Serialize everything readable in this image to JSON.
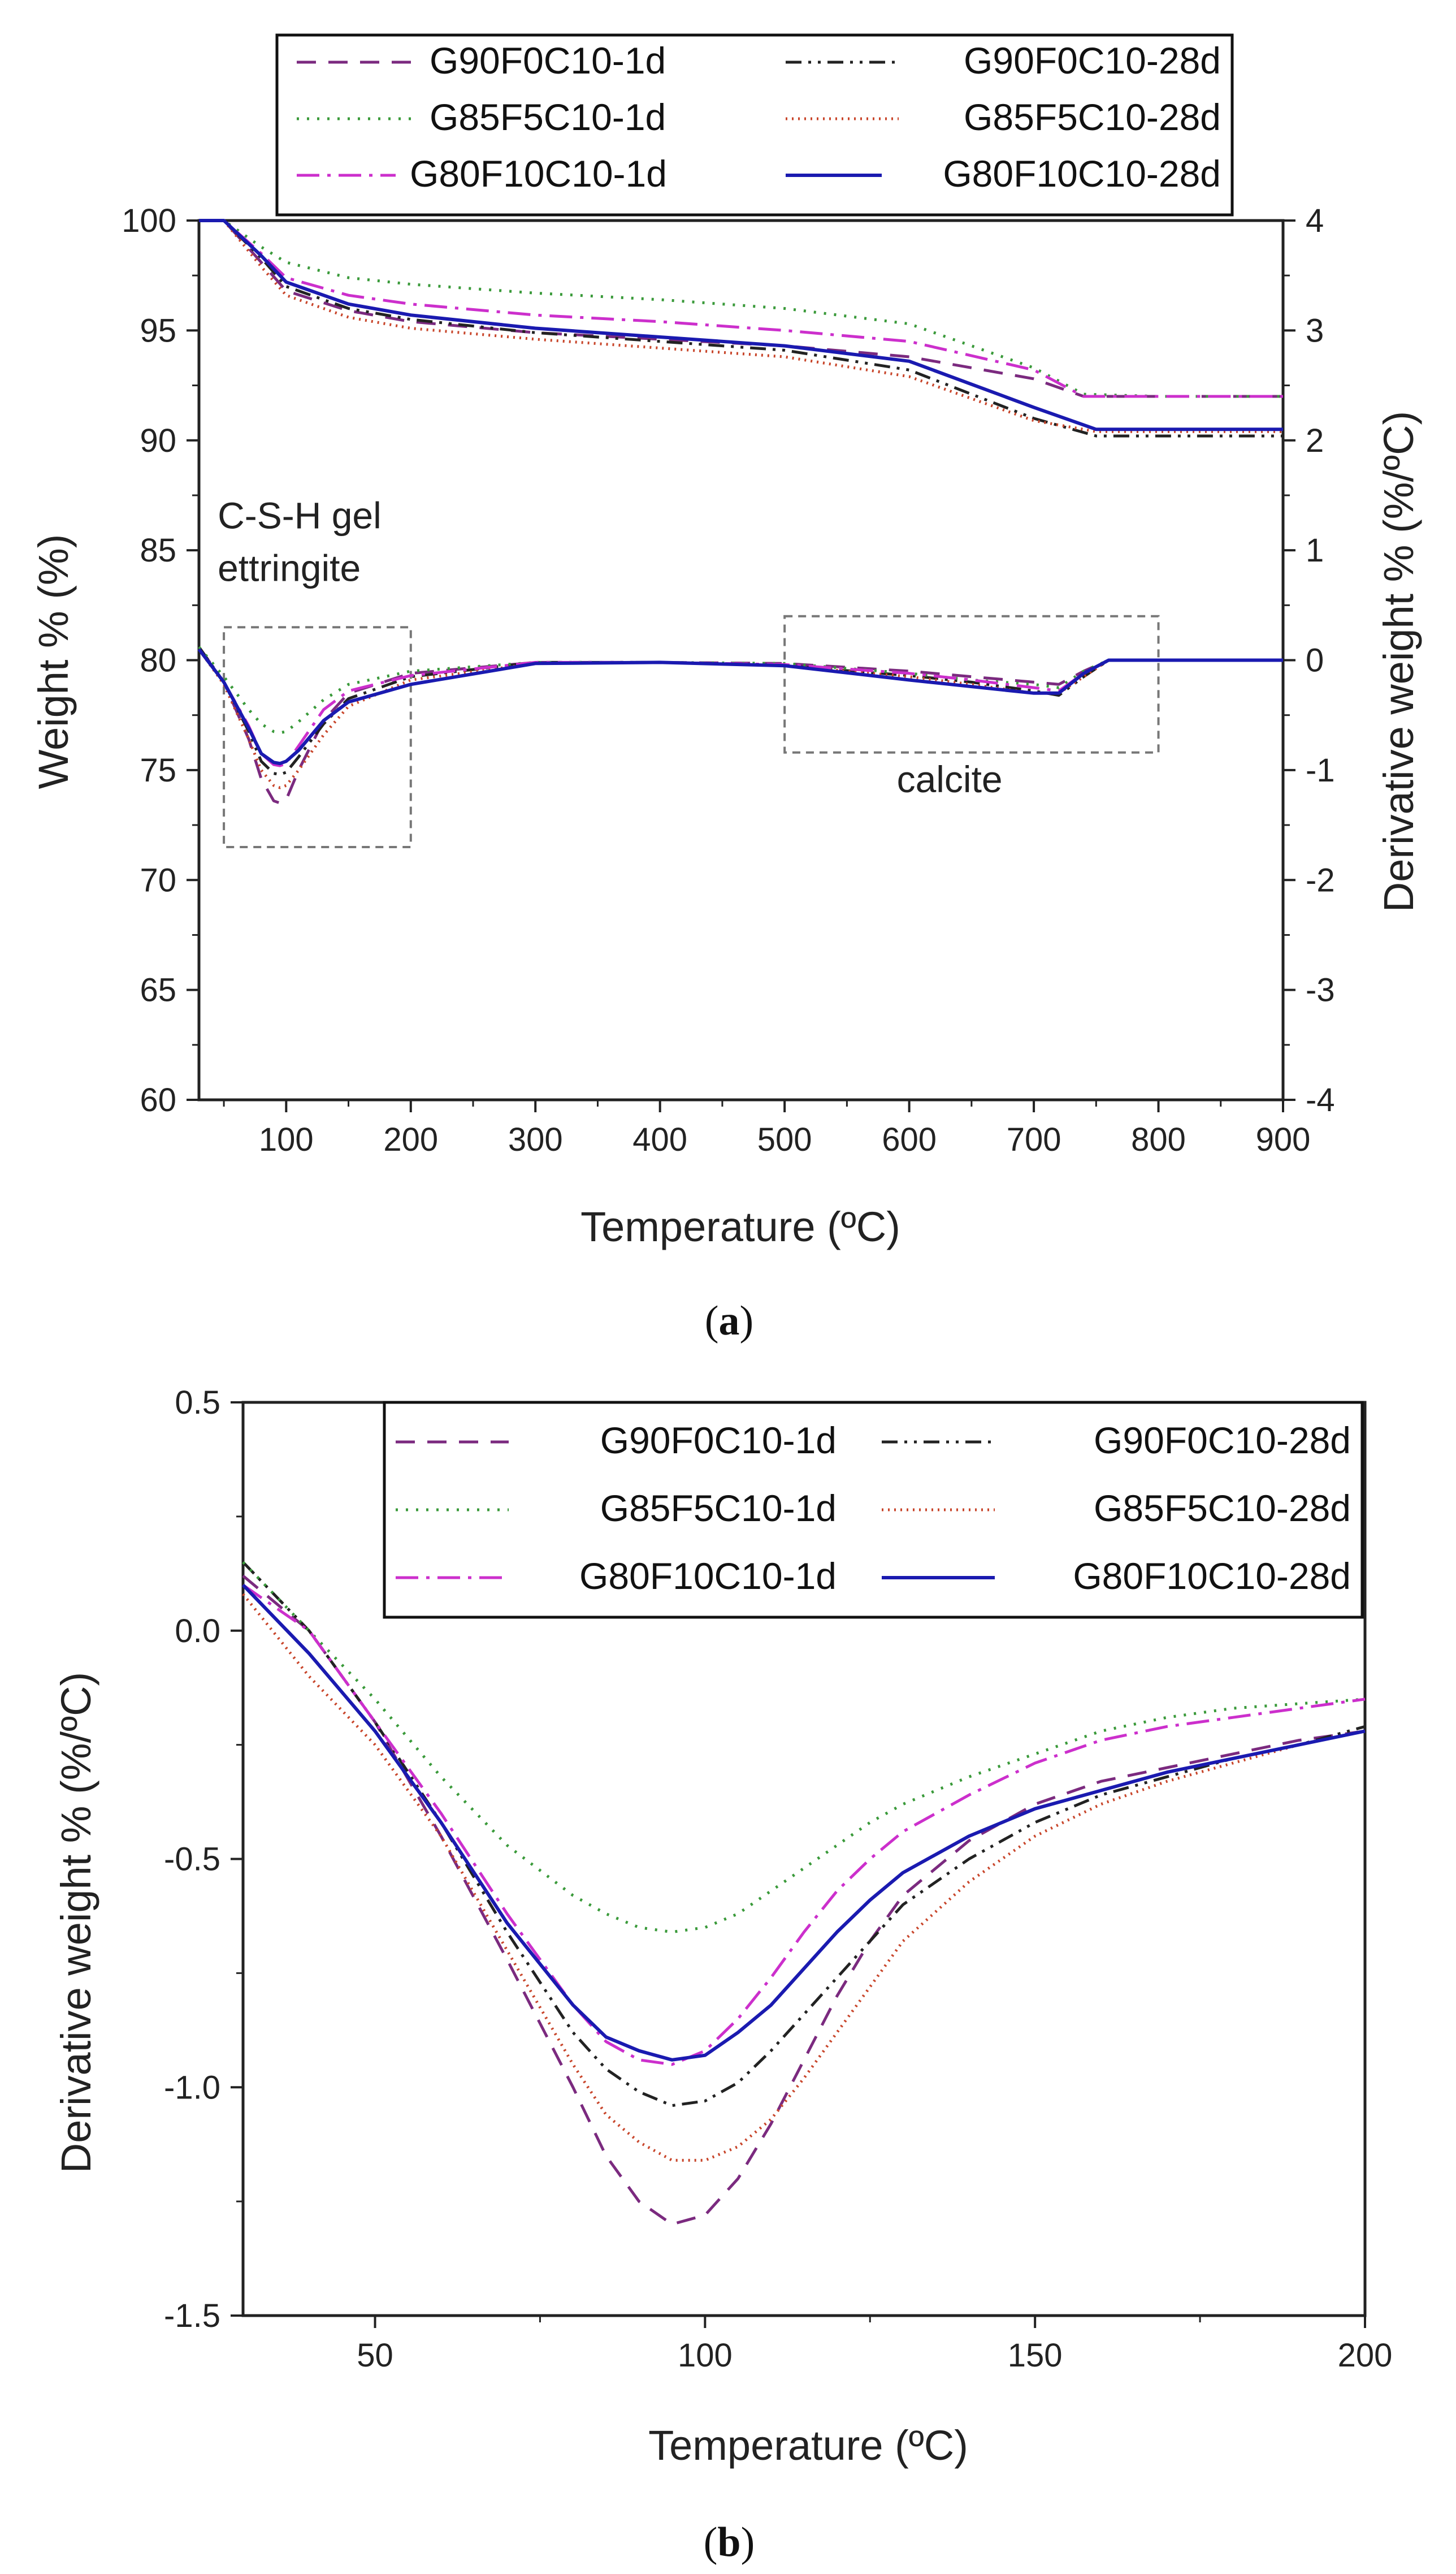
{
  "chart_data": [
    {
      "panel": "a",
      "type": "line",
      "caption_open": "(",
      "caption_letter": "a",
      "caption_close": ")",
      "xlabel": "Temperature (ºC)",
      "ylabel": "Weight % (%)",
      "y2label": "Derivative weight % (%/ºC)",
      "xlim": [
        30,
        900
      ],
      "ylim": [
        60,
        100
      ],
      "y2lim": [
        -4,
        4
      ],
      "xticks": [
        100,
        200,
        300,
        400,
        500,
        600,
        700,
        800,
        900
      ],
      "yticks": [
        60,
        65,
        70,
        75,
        80,
        85,
        90,
        95,
        100
      ],
      "y2ticks": [
        -4,
        -3,
        -2,
        -1,
        0,
        1,
        2,
        3,
        4
      ],
      "annotations": [
        {
          "text": "C-S-H gel",
          "x": 45,
          "y": 86.0
        },
        {
          "text": "ettringite",
          "x": 45,
          "y": 83.6
        },
        {
          "text": "calcite",
          "x": 590,
          "y": 74.0
        }
      ],
      "boxes": [
        {
          "name": "C-S-H gel / ettringite region",
          "x": [
            50,
            200
          ],
          "y": [
            71.5,
            81.5
          ]
        },
        {
          "name": "calcite region",
          "x": [
            500,
            800
          ],
          "y": [
            75.8,
            82.0
          ]
        }
      ],
      "series": [
        {
          "name": "G90F0C10-1d",
          "color": "#7b2a7f",
          "dash": "dash",
          "weight": {
            "x": [
              30,
              50,
              80,
              100,
              150,
              200,
              300,
              400,
              500,
              600,
              700,
              740,
              800,
              900
            ],
            "y": [
              100,
              100,
              98.1,
              96.8,
              95.9,
              95.4,
              94.9,
              94.6,
              94.3,
              93.8,
              92.8,
              92.0,
              92.0,
              92.0
            ]
          },
          "deriv": {
            "x": [
              30,
              50,
              70,
              80,
              90,
              95,
              100,
              110,
              130,
              150,
              200,
              300,
              400,
              500,
              600,
              650,
              700,
              720,
              740,
              760,
              800,
              900
            ],
            "y": [
              0.12,
              -0.2,
              -0.72,
              -1.08,
              -1.28,
              -1.3,
              -1.27,
              -1.0,
              -0.55,
              -0.3,
              -0.12,
              -0.02,
              -0.02,
              -0.03,
              -0.1,
              -0.15,
              -0.2,
              -0.22,
              -0.1,
              0.0,
              0.0,
              0.0
            ]
          }
        },
        {
          "name": "G90F0C10-28d",
          "color": "#222222",
          "dash": "dashdotdot",
          "weight": {
            "x": [
              30,
              50,
              80,
              100,
              150,
              200,
              300,
              400,
              500,
              600,
              700,
              750,
              800,
              900
            ],
            "y": [
              100,
              100,
              98.3,
              97.0,
              96.0,
              95.5,
              94.9,
              94.5,
              94.1,
              93.2,
              91.0,
              90.2,
              90.2,
              90.2
            ]
          },
          "deriv": {
            "x": [
              30,
              50,
              70,
              80,
              90,
              95,
              100,
              110,
              130,
              150,
              200,
              300,
              400,
              500,
              600,
              650,
              700,
              720,
              740,
              760,
              800,
              900
            ],
            "y": [
              0.12,
              -0.2,
              -0.65,
              -0.92,
              -1.03,
              -1.04,
              -1.02,
              -0.88,
              -0.58,
              -0.35,
              -0.15,
              -0.02,
              -0.02,
              -0.05,
              -0.14,
              -0.2,
              -0.28,
              -0.32,
              -0.15,
              0.0,
              0.0,
              0.0
            ]
          }
        },
        {
          "name": "G85F5C10-1d",
          "color": "#3a9a3a",
          "dash": "dot",
          "weight": {
            "x": [
              30,
              50,
              80,
              100,
              150,
              200,
              300,
              400,
              500,
              600,
              700,
              740,
              800,
              900
            ],
            "y": [
              100,
              100,
              98.8,
              98.1,
              97.4,
              97.1,
              96.7,
              96.4,
              96.0,
              95.3,
              93.3,
              92.1,
              92.0,
              92.0
            ]
          },
          "deriv": {
            "x": [
              30,
              50,
              70,
              80,
              90,
              95,
              100,
              110,
              130,
              150,
              200,
              300,
              400,
              500,
              600,
              650,
              700,
              720,
              740,
              760,
              800,
              900
            ],
            "y": [
              0.12,
              -0.15,
              -0.45,
              -0.58,
              -0.65,
              -0.66,
              -0.65,
              -0.56,
              -0.36,
              -0.22,
              -0.1,
              -0.02,
              -0.02,
              -0.03,
              -0.12,
              -0.18,
              -0.22,
              -0.25,
              -0.1,
              0.0,
              0.0,
              0.0
            ]
          }
        },
        {
          "name": "G85F5C10-28d",
          "color": "#c8452a",
          "dash": "dotfine",
          "weight": {
            "x": [
              30,
              50,
              80,
              100,
              150,
              200,
              300,
              400,
              500,
              600,
              700,
              750,
              800,
              900
            ],
            "y": [
              100,
              100,
              97.9,
              96.6,
              95.6,
              95.1,
              94.6,
              94.2,
              93.8,
              92.9,
              90.9,
              90.4,
              90.4,
              90.4
            ]
          },
          "deriv": {
            "x": [
              30,
              50,
              70,
              80,
              90,
              95,
              100,
              110,
              130,
              150,
              200,
              300,
              400,
              500,
              600,
              650,
              700,
              720,
              740,
              760,
              800,
              900
            ],
            "y": [
              0.1,
              -0.22,
              -0.72,
              -1.0,
              -1.14,
              -1.16,
              -1.14,
              -1.0,
              -0.68,
              -0.42,
              -0.18,
              -0.03,
              -0.02,
              -0.05,
              -0.15,
              -0.22,
              -0.3,
              -0.3,
              -0.15,
              0.0,
              0.0,
              0.0
            ]
          }
        },
        {
          "name": "G80F10C10-1d",
          "color": "#cc2fcc",
          "dash": "dashdot",
          "weight": {
            "x": [
              30,
              50,
              80,
              100,
              150,
              200,
              300,
              400,
              500,
              600,
              700,
              740,
              800,
              900
            ],
            "y": [
              100,
              100,
              98.5,
              97.4,
              96.6,
              96.2,
              95.7,
              95.4,
              95.0,
              94.5,
              93.2,
              92.0,
              92.0,
              92.0
            ]
          },
          "deriv": {
            "x": [
              30,
              50,
              70,
              80,
              90,
              95,
              100,
              110,
              130,
              150,
              200,
              300,
              400,
              500,
              600,
              650,
              700,
              720,
              740,
              760,
              800,
              900
            ],
            "y": [
              0.1,
              -0.2,
              -0.6,
              -0.85,
              -0.95,
              -0.96,
              -0.94,
              -0.78,
              -0.45,
              -0.28,
              -0.14,
              -0.02,
              -0.02,
              -0.04,
              -0.12,
              -0.18,
              -0.25,
              -0.28,
              -0.12,
              0.0,
              0.0,
              0.0
            ]
          }
        },
        {
          "name": "G80F10C10-28d",
          "color": "#1a1ab0",
          "dash": "solid",
          "weight": {
            "x": [
              30,
              50,
              80,
              100,
              150,
              200,
              300,
              400,
              500,
              600,
              700,
              750,
              800,
              900
            ],
            "y": [
              100,
              100,
              98.4,
              97.2,
              96.2,
              95.7,
              95.1,
              94.7,
              94.3,
              93.6,
              91.5,
              90.5,
              90.5,
              90.5
            ]
          },
          "deriv": {
            "x": [
              30,
              50,
              70,
              80,
              90,
              95,
              100,
              110,
              130,
              150,
              200,
              300,
              400,
              500,
              600,
              650,
              700,
              720,
              740,
              760,
              800,
              900
            ],
            "y": [
              0.1,
              -0.2,
              -0.62,
              -0.85,
              -0.93,
              -0.94,
              -0.92,
              -0.82,
              -0.55,
              -0.38,
              -0.22,
              -0.03,
              -0.02,
              -0.05,
              -0.18,
              -0.24,
              -0.3,
              -0.3,
              -0.12,
              0.0,
              0.0,
              0.0
            ]
          }
        }
      ]
    },
    {
      "panel": "b",
      "type": "line",
      "caption_open": "(",
      "caption_letter": "b",
      "caption_close": ")",
      "xlabel": "Temperature (ºC)",
      "ylabel": "Derivative weight % (%/ºC)",
      "xlim": [
        30,
        200
      ],
      "ylim": [
        -1.5,
        0.5
      ],
      "xticks": [
        50,
        100,
        150,
        200
      ],
      "yticks": [
        -1.5,
        -1.0,
        -0.5,
        0.0,
        0.5
      ],
      "ytick_labels": [
        "-1.5",
        "-1.0",
        "-0.5",
        "0.0",
        "0.5"
      ],
      "series": [
        {
          "name": "G90F0C10-1d",
          "color": "#7b2a7f",
          "dash": "dash",
          "x": [
            30,
            40,
            50,
            60,
            70,
            80,
            85,
            90,
            95,
            100,
            105,
            110,
            115,
            120,
            125,
            130,
            140,
            150,
            160,
            170,
            180,
            190,
            200
          ],
          "y": [
            0.12,
            0.0,
            -0.2,
            -0.45,
            -0.72,
            -1.0,
            -1.15,
            -1.25,
            -1.3,
            -1.28,
            -1.2,
            -1.08,
            -0.94,
            -0.8,
            -0.68,
            -0.58,
            -0.46,
            -0.38,
            -0.33,
            -0.3,
            -0.27,
            -0.24,
            -0.22
          ]
        },
        {
          "name": "G90F0C10-28d",
          "color": "#222222",
          "dash": "dashdotdot",
          "x": [
            30,
            40,
            50,
            60,
            70,
            80,
            85,
            90,
            95,
            100,
            105,
            110,
            115,
            120,
            125,
            130,
            140,
            150,
            160,
            170,
            180,
            190,
            200
          ],
          "y": [
            0.15,
            0.0,
            -0.2,
            -0.42,
            -0.66,
            -0.88,
            -0.96,
            -1.01,
            -1.04,
            -1.03,
            -0.99,
            -0.92,
            -0.84,
            -0.76,
            -0.68,
            -0.6,
            -0.5,
            -0.42,
            -0.36,
            -0.32,
            -0.28,
            -0.25,
            -0.21
          ]
        },
        {
          "name": "G85F5C10-1d",
          "color": "#3a9a3a",
          "dash": "dot",
          "x": [
            30,
            40,
            50,
            60,
            70,
            80,
            85,
            90,
            95,
            100,
            105,
            110,
            115,
            120,
            125,
            130,
            140,
            150,
            160,
            170,
            180,
            190,
            200
          ],
          "y": [
            0.15,
            0.0,
            -0.15,
            -0.32,
            -0.47,
            -0.58,
            -0.62,
            -0.65,
            -0.66,
            -0.65,
            -0.62,
            -0.57,
            -0.52,
            -0.47,
            -0.42,
            -0.38,
            -0.32,
            -0.27,
            -0.22,
            -0.19,
            -0.17,
            -0.16,
            -0.15
          ]
        },
        {
          "name": "G85F5C10-28d",
          "color": "#c8452a",
          "dash": "dotfine",
          "x": [
            30,
            40,
            50,
            60,
            70,
            80,
            85,
            90,
            95,
            100,
            105,
            110,
            115,
            120,
            125,
            130,
            140,
            150,
            160,
            170,
            180,
            190,
            200
          ],
          "y": [
            0.08,
            -0.1,
            -0.25,
            -0.45,
            -0.7,
            -0.95,
            -1.06,
            -1.12,
            -1.16,
            -1.16,
            -1.13,
            -1.07,
            -0.98,
            -0.88,
            -0.78,
            -0.68,
            -0.55,
            -0.45,
            -0.38,
            -0.33,
            -0.29,
            -0.25,
            -0.22
          ]
        },
        {
          "name": "G80F10C10-1d",
          "color": "#cc2fcc",
          "dash": "dashdot",
          "x": [
            30,
            40,
            50,
            60,
            70,
            80,
            85,
            90,
            95,
            100,
            105,
            110,
            115,
            120,
            125,
            130,
            140,
            150,
            160,
            170,
            180,
            190,
            200
          ],
          "y": [
            0.1,
            0.0,
            -0.2,
            -0.4,
            -0.62,
            -0.82,
            -0.9,
            -0.94,
            -0.95,
            -0.92,
            -0.85,
            -0.76,
            -0.66,
            -0.57,
            -0.5,
            -0.44,
            -0.36,
            -0.29,
            -0.24,
            -0.21,
            -0.19,
            -0.17,
            -0.15
          ]
        },
        {
          "name": "G80F10C10-28d",
          "color": "#1a1ab0",
          "dash": "solid",
          "x": [
            30,
            40,
            50,
            60,
            70,
            80,
            85,
            90,
            95,
            100,
            105,
            110,
            115,
            120,
            125,
            130,
            140,
            150,
            160,
            170,
            180,
            190,
            200
          ],
          "y": [
            0.1,
            -0.05,
            -0.22,
            -0.42,
            -0.64,
            -0.82,
            -0.89,
            -0.92,
            -0.94,
            -0.93,
            -0.88,
            -0.82,
            -0.74,
            -0.66,
            -0.59,
            -0.53,
            -0.45,
            -0.39,
            -0.35,
            -0.31,
            -0.28,
            -0.25,
            -0.22
          ]
        }
      ]
    }
  ]
}
